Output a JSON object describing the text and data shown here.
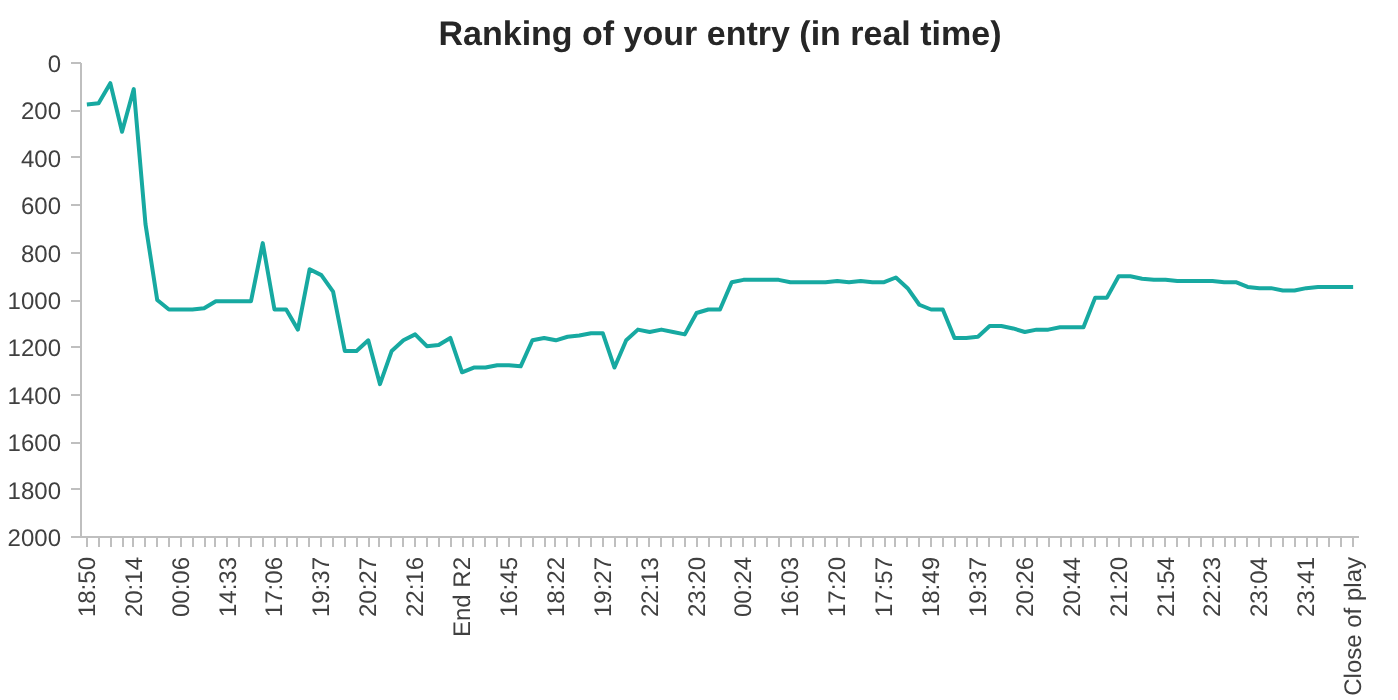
{
  "chart_data": {
    "type": "line",
    "title": "Ranking of your entry (in real time)",
    "categories": [
      "18:50",
      null,
      null,
      null,
      "20:14",
      null,
      null,
      null,
      "00:06",
      null,
      null,
      null,
      "14:33",
      null,
      null,
      null,
      "17:06",
      null,
      null,
      null,
      "19:37",
      null,
      null,
      null,
      "20:27",
      null,
      null,
      null,
      "22:16",
      null,
      null,
      null,
      "End R2",
      null,
      null,
      null,
      "16:45",
      null,
      null,
      null,
      "18:22",
      null,
      null,
      null,
      "19:27",
      null,
      null,
      null,
      "22:13",
      null,
      null,
      null,
      "23:20",
      null,
      null,
      null,
      "00:24",
      null,
      null,
      null,
      "16:03",
      null,
      null,
      null,
      "17:20",
      null,
      null,
      null,
      "17:57",
      null,
      null,
      null,
      "18:49",
      null,
      null,
      null,
      "19:37",
      null,
      null,
      null,
      "20:26",
      null,
      null,
      null,
      "20:44",
      null,
      null,
      null,
      "21:20",
      null,
      null,
      null,
      "21:54",
      null,
      null,
      null,
      "22:23",
      null,
      null,
      null,
      "23:04",
      null,
      null,
      null,
      "23:41",
      null,
      null,
      null,
      "Close of play"
    ],
    "series": [
      {
        "color": "#17a9a1",
        "values": [
          175,
          170,
          85,
          290,
          110,
          680,
          1000,
          1040,
          1040,
          1040,
          1035,
          1005,
          1005,
          1005,
          1005,
          760,
          1040,
          1040,
          1125,
          870,
          895,
          965,
          1215,
          1215,
          1170,
          1355,
          1215,
          1170,
          1145,
          1195,
          1190,
          1160,
          1305,
          1285,
          1285,
          1275,
          1275,
          1280,
          1170,
          1160,
          1170,
          1155,
          1150,
          1140,
          1140,
          1285,
          1170,
          1125,
          1135,
          1125,
          1135,
          1145,
          1055,
          1040,
          1040,
          925,
          915,
          915,
          915,
          915,
          925,
          925,
          925,
          925,
          920,
          925,
          920,
          925,
          925,
          905,
          950,
          1020,
          1040,
          1040,
          1160,
          1160,
          1155,
          1110,
          1110,
          1120,
          1135,
          1125,
          1125,
          1115,
          1115,
          1115,
          990,
          990,
          900,
          900,
          910,
          915,
          915,
          920,
          920,
          920,
          920,
          925,
          925,
          945,
          950,
          950,
          960,
          960,
          950,
          945,
          945,
          945,
          945
        ]
      }
    ],
    "ylim": [
      2000,
      0
    ],
    "yticks": [
      0,
      200,
      400,
      600,
      800,
      1000,
      1200,
      1400,
      1600,
      1800,
      2000
    ],
    "grid": false,
    "marker": "none",
    "line_style": "solid"
  }
}
